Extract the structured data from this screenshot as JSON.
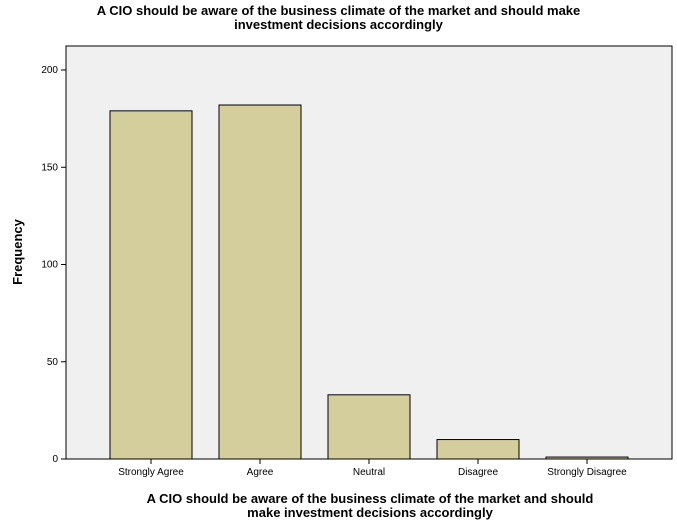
{
  "chart_data": {
    "type": "bar",
    "title": "A CIO should be aware of the business climate of the market and should make investment decisions accordingly",
    "title_lines": [
      "A CIO should be aware of the business climate of the market and should make",
      "investment decisions accordingly"
    ],
    "xlabel": "A CIO should be aware of the business climate of the market and should make investment decisions accordingly",
    "xlabel_lines": [
      "A CIO should be aware of the business climate of the market and should",
      "make investment decisions accordingly"
    ],
    "ylabel": "Frequency",
    "categories": [
      "Strongly Agree",
      "Agree",
      "Neutral",
      "Disagree",
      "Strongly Disagree"
    ],
    "values": [
      179,
      182,
      33,
      10,
      1
    ],
    "ylim": [
      0,
      200
    ],
    "yticks": [
      0,
      50,
      100,
      150,
      200
    ],
    "grid": false,
    "colors": {
      "bar_fill": "#d3ce9c",
      "bar_stroke": "#000000",
      "plot_background": "#f0f0f0"
    }
  }
}
